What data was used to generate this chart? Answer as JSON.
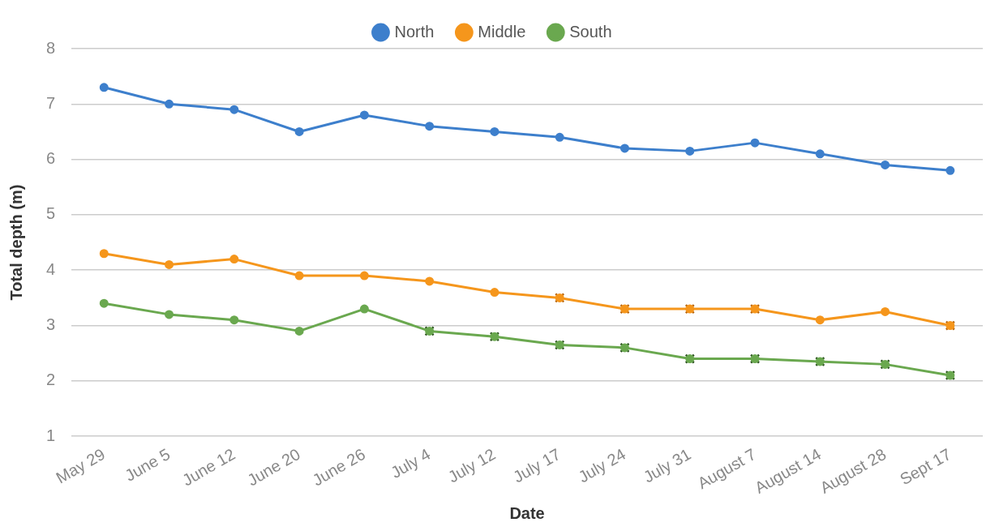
{
  "chart_data": {
    "type": "line",
    "xlabel": "Date",
    "ylabel": "Total depth (m)",
    "categories": [
      "May 29",
      "June 5",
      "June 12",
      "June 20",
      "June 26",
      "July 4",
      "July 12",
      "July 17",
      "July 24",
      "July 31",
      "August 7",
      "August 14",
      "August 28",
      "Sept 17"
    ],
    "ylim": [
      1,
      8
    ],
    "yticks": [
      1,
      2,
      3,
      4,
      5,
      6,
      7,
      8
    ],
    "grid": "y",
    "legend": "top",
    "marker": "circle",
    "line_style": "solid",
    "series": [
      {
        "name": "North",
        "color": "#3d7fcc",
        "values": [
          7.3,
          7.0,
          6.9,
          6.5,
          6.8,
          6.6,
          6.5,
          6.4,
          6.2,
          6.15,
          6.3,
          6.1,
          5.9,
          5.8
        ]
      },
      {
        "name": "Middle",
        "color": "#f5961c",
        "values": [
          4.3,
          4.1,
          4.2,
          3.9,
          3.9,
          3.8,
          3.6,
          3.5,
          3.3,
          3.3,
          3.3,
          3.1,
          3.25,
          3.0
        ]
      },
      {
        "name": "South",
        "color": "#6aa84f",
        "values": [
          3.4,
          3.2,
          3.1,
          2.9,
          3.3,
          2.9,
          2.8,
          2.65,
          2.6,
          2.4,
          2.4,
          2.35,
          2.3,
          2.1
        ]
      },
      {
        "type": "scatter",
        "marker": "cross",
        "color": "#b5620a",
        "x": [
          "July 17",
          "July 24",
          "July 31",
          "August 7",
          "Sept 17"
        ],
        "values": [
          3.5,
          3.3,
          3.3,
          3.3,
          3.0
        ]
      },
      {
        "type": "scatter",
        "marker": "cross",
        "color": "#264d1a",
        "x": [
          "July 4",
          "July 12",
          "July 17",
          "July 24",
          "July 31",
          "August 7",
          "August 14",
          "August 28",
          "Sept 17"
        ],
        "values": [
          2.9,
          2.8,
          2.65,
          2.6,
          2.4,
          2.4,
          2.35,
          2.3,
          2.1
        ]
      }
    ]
  }
}
